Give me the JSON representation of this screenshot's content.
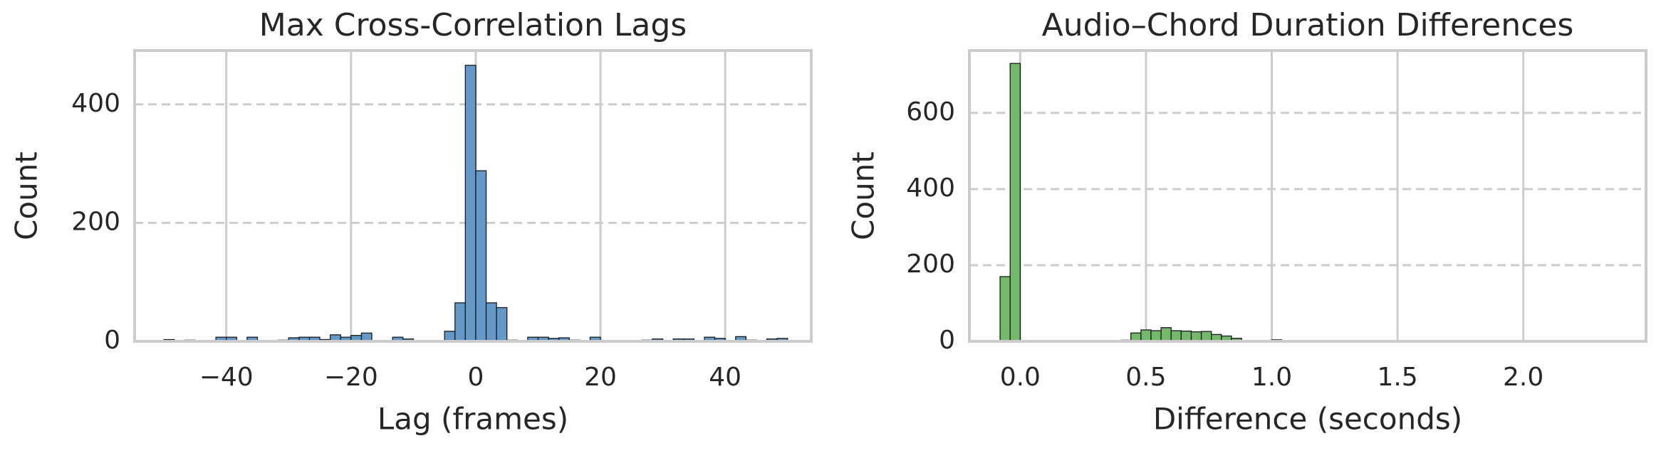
{
  "chart_data": [
    {
      "type": "histogram",
      "title": "Max Cross-Correlation Lags",
      "xlabel": "Lag (frames)",
      "ylabel": "Count",
      "bins": [
        -50,
        -48.33,
        -46.67,
        -45,
        -43.33,
        -41.67,
        -40,
        -38.33,
        -36.67,
        -35,
        -33.33,
        -31.67,
        -30,
        -28.33,
        -26.67,
        -25,
        -23.33,
        -21.67,
        -20,
        -18.33,
        -16.67,
        -15,
        -13.33,
        -11.67,
        -10,
        -8.33,
        -6.67,
        -5,
        -3.33,
        -1.67,
        0,
        1.67,
        3.33,
        5,
        6.67,
        8.33,
        10,
        11.67,
        13.33,
        15,
        16.67,
        18.33,
        20,
        21.67,
        23.33,
        25,
        26.67,
        28.33,
        30,
        31.67,
        33.33,
        35,
        36.67,
        38.33,
        40,
        41.67,
        43.33,
        45,
        46.67,
        48.33,
        50
      ],
      "values": [
        3,
        0,
        2,
        0,
        0,
        7,
        7,
        0,
        7,
        0,
        0,
        2,
        6,
        7,
        7,
        3,
        11,
        7,
        10,
        14,
        0,
        0,
        7,
        4,
        0,
        0,
        0,
        17,
        65,
        466,
        288,
        65,
        57,
        2,
        0,
        7,
        7,
        5,
        6,
        2,
        0,
        7,
        0,
        0,
        0,
        0,
        2,
        4,
        0,
        4,
        4,
        0,
        7,
        5,
        0,
        8,
        2,
        0,
        4,
        5
      ],
      "color": "#6399c8",
      "edgecolor": "#1a1a1a",
      "xlim": [
        -54.7,
        53.8
      ],
      "ylim": [
        0,
        491
      ],
      "xticks": [
        {
          "value": -40,
          "label": "−40"
        },
        {
          "value": -20,
          "label": "−20"
        },
        0,
        20,
        40
      ],
      "yticks": [
        0,
        200,
        400
      ],
      "grid": true
    },
    {
      "type": "histogram",
      "title": "Audio–Chord Duration Differences",
      "xlabel": "Difference (seconds)",
      "ylabel": "Count",
      "bins": [
        -0.08,
        -0.04,
        0,
        0.04,
        0.08,
        0.12,
        0.16,
        0.2,
        0.24,
        0.28,
        0.32,
        0.36,
        0.4,
        0.44,
        0.48,
        0.52,
        0.56,
        0.6,
        0.64,
        0.68,
        0.72,
        0.76,
        0.8,
        0.84,
        0.88,
        0.92,
        0.96,
        1,
        1.04,
        1.08,
        1.12,
        1.16,
        1.2,
        1.24,
        1.28,
        1.32,
        1.36,
        1.4,
        1.44,
        1.48,
        1.52,
        1.56,
        1.6,
        1.64,
        1.68,
        1.72,
        1.76,
        1.8,
        1.84,
        1.88,
        1.92,
        1.96,
        2,
        2.04,
        2.08,
        2.12,
        2.16,
        2.2,
        2.24,
        2.28,
        2.32
      ],
      "values": [
        170,
        730,
        0,
        0,
        0,
        0,
        0,
        0,
        0,
        0,
        0,
        2,
        3,
        22,
        30,
        28,
        36,
        28,
        27,
        25,
        26,
        18,
        14,
        8,
        0,
        0,
        0,
        4,
        0,
        0,
        0,
        0,
        0,
        0,
        0,
        0,
        0,
        0,
        0,
        0,
        0,
        0,
        0,
        0,
        0,
        0,
        0,
        0,
        0,
        0,
        0,
        0,
        0,
        0,
        0,
        0,
        0,
        0,
        0,
        0
      ],
      "color": "#72b96a",
      "edgecolor": "#1a1a1a",
      "xlim": [
        -0.202,
        2.488
      ],
      "ylim": [
        0,
        764
      ],
      "xticks": [
        {
          "value": 0,
          "label": "0.0"
        },
        0.5,
        {
          "value": 1,
          "label": "1.0"
        },
        1.5,
        {
          "value": 2,
          "label": "2.0"
        }
      ],
      "yticks": [
        0,
        200,
        400,
        600
      ],
      "grid": true
    }
  ]
}
